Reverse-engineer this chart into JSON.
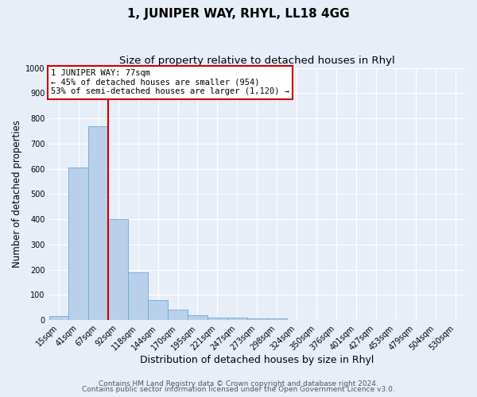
{
  "title": "1, JUNIPER WAY, RHYL, LL18 4GG",
  "subtitle": "Size of property relative to detached houses in Rhyl",
  "xlabel": "Distribution of detached houses by size in Rhyl",
  "ylabel": "Number of detached properties",
  "bar_labels": [
    "15sqm",
    "41sqm",
    "67sqm",
    "92sqm",
    "118sqm",
    "144sqm",
    "170sqm",
    "195sqm",
    "221sqm",
    "247sqm",
    "273sqm",
    "298sqm",
    "324sqm",
    "350sqm",
    "376sqm",
    "401sqm",
    "427sqm",
    "453sqm",
    "479sqm",
    "504sqm",
    "530sqm"
  ],
  "bar_values": [
    15,
    605,
    770,
    400,
    190,
    78,
    40,
    18,
    10,
    10,
    5,
    5,
    0,
    0,
    0,
    0,
    0,
    0,
    0,
    0,
    0
  ],
  "bar_color": "#b8d0ea",
  "bar_edge_color": "#6aaad4",
  "red_line_color": "#cc0000",
  "annotation_lines": [
    "1 JUNIPER WAY: 77sqm",
    "← 45% of detached houses are smaller (954)",
    "53% of semi-detached houses are larger (1,120) →"
  ],
  "annotation_box_color": "#ffffff",
  "annotation_box_edge_color": "#cc0000",
  "ylim": [
    0,
    1000
  ],
  "yticks": [
    0,
    100,
    200,
    300,
    400,
    500,
    600,
    700,
    800,
    900,
    1000
  ],
  "background_color": "#e8eef8",
  "plot_background_color": "#e8eef8",
  "grid_color": "#ffffff",
  "footer_line1": "Contains HM Land Registry data © Crown copyright and database right 2024.",
  "footer_line2": "Contains public sector information licensed under the Open Government Licence v3.0.",
  "title_fontsize": 11,
  "subtitle_fontsize": 9.5,
  "xlabel_fontsize": 9,
  "ylabel_fontsize": 8.5,
  "tick_fontsize": 7,
  "footer_fontsize": 6.5,
  "annot_fontsize": 7.5
}
